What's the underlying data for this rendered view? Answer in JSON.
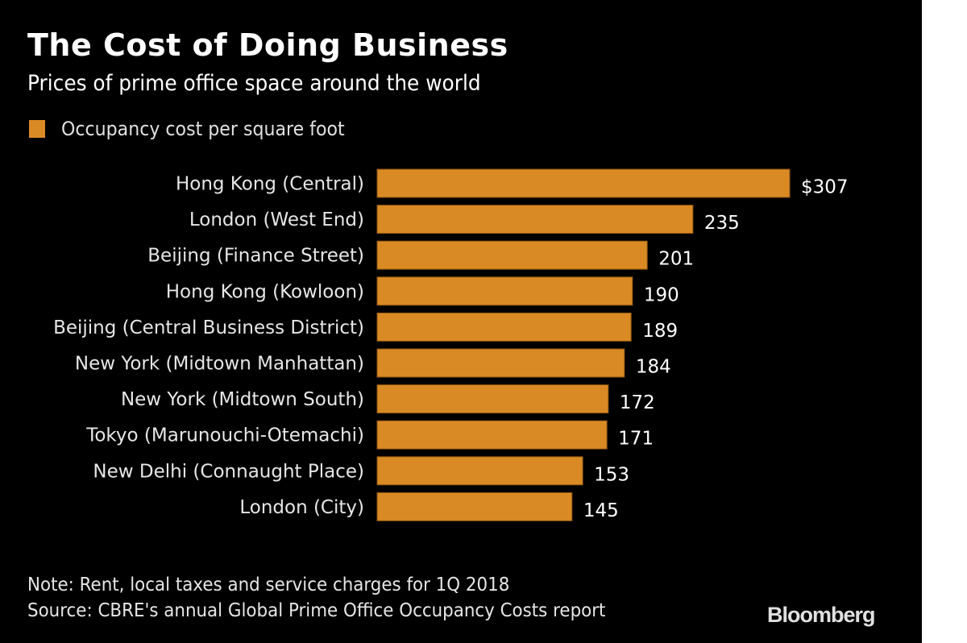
{
  "header": {
    "title": "The Cost of Doing Business",
    "subtitle": "Prices of prime office space around the world"
  },
  "legend": {
    "label": "Occupancy cost per square foot",
    "color": "#DA8A25"
  },
  "footer": {
    "note": "Note: Rent, local taxes and service charges for 1Q 2018",
    "source": "Source: CBRE's annual Global Prime Office Occupancy Costs report",
    "logo": "Bloomberg"
  },
  "chart_data": {
    "type": "bar",
    "orientation": "horizontal",
    "title": "The Cost of Doing Business",
    "subtitle": "Prices of prime office space around the world",
    "xlabel": "",
    "ylabel": "",
    "legend": [
      "Occupancy cost per square foot"
    ],
    "legend_position": "top-left",
    "grid": false,
    "xlim": [
      0,
      307
    ],
    "categories": [
      "Hong Kong (Central)",
      "London (West End)",
      "Beijing (Finance Street)",
      "Hong Kong (Kowloon)",
      "Beijing (Central Business District)",
      "New York (Midtown Manhattan)",
      "New York (Midtown South)",
      "Tokyo (Marunouchi-Otemachi)",
      "New Delhi (Connaught Place)",
      "London (City)"
    ],
    "values": [
      307,
      235,
      201,
      190,
      189,
      184,
      172,
      171,
      153,
      145
    ],
    "value_labels": [
      "$307",
      "235",
      "201",
      "190",
      "189",
      "184",
      "172",
      "171",
      "153",
      "145"
    ],
    "series": [
      {
        "name": "Occupancy cost per square foot",
        "color": "#DA8A25",
        "values": [
          307,
          235,
          201,
          190,
          189,
          184,
          172,
          171,
          153,
          145
        ]
      }
    ]
  }
}
